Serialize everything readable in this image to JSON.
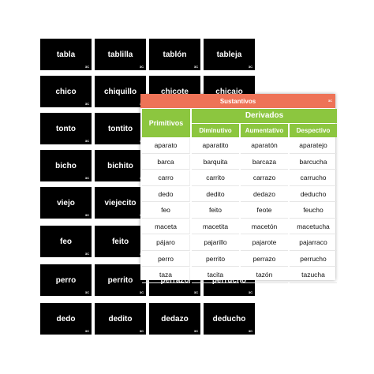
{
  "cards": [
    [
      "tabla",
      "tablilla",
      "tablón",
      "tableja"
    ],
    [
      "chico",
      "chiquillo",
      "chicote",
      "chicajo"
    ],
    [
      "tonto",
      "tontito",
      "",
      ""
    ],
    [
      "bicho",
      "bichito",
      "",
      ""
    ],
    [
      "viejo",
      "viejecito",
      "",
      ""
    ],
    [
      "feo",
      "feito",
      "",
      ""
    ],
    [
      "perro",
      "perrito",
      "perrazo",
      "perrucho"
    ],
    [
      "dedo",
      "dedito",
      "dedazo",
      "deducho"
    ]
  ],
  "card_mark": "3C",
  "panel": {
    "title": "Sustantivos",
    "mark": "3C",
    "header_primitivos": "Primitivos",
    "header_derivados": "Derivados",
    "subheaders": [
      "Diminutivo",
      "Aumentativo",
      "Despectivo"
    ],
    "rows": [
      [
        "aparato",
        "aparatito",
        "aparatón",
        "aparatejo"
      ],
      [
        "barca",
        "barquita",
        "barcaza",
        "barcucha"
      ],
      [
        "carro",
        "carrito",
        "carrazo",
        "carrucho"
      ],
      [
        "dedo",
        "dedito",
        "dedazo",
        "deducho"
      ],
      [
        "feo",
        "feito",
        "feote",
        "feucho"
      ],
      [
        "maceta",
        "macetita",
        "macetón",
        "macetucha"
      ],
      [
        "pájaro",
        "pajarillo",
        "pajarote",
        "pajarraco"
      ],
      [
        "perro",
        "perrito",
        "perrazo",
        "perrucho"
      ],
      [
        "taza",
        "tacita",
        "tazón",
        "tazucha"
      ]
    ]
  },
  "colors": {
    "card_bg": "#000000",
    "header_orange": "#ee7357",
    "header_green": "#8cc63f"
  }
}
